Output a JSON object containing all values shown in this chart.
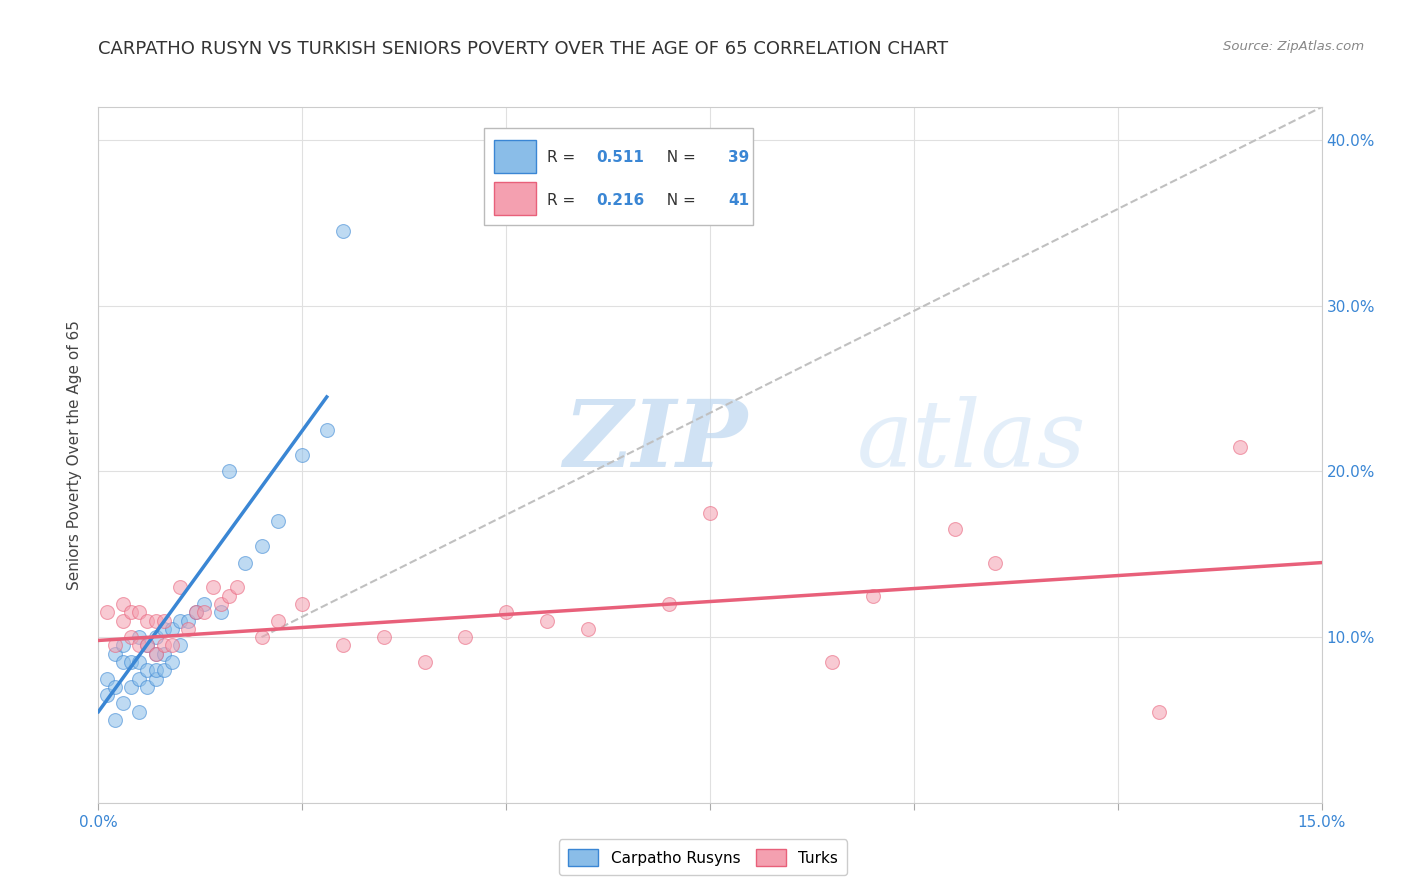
{
  "title": "CARPATHO RUSYN VS TURKISH SENIORS POVERTY OVER THE AGE OF 65 CORRELATION CHART",
  "source": "Source: ZipAtlas.com",
  "ylabel": "Seniors Poverty Over the Age of 65",
  "xlim": [
    0,
    0.15
  ],
  "ylim": [
    0,
    0.42
  ],
  "xticks": [
    0.0,
    0.025,
    0.05,
    0.075,
    0.1,
    0.125,
    0.15
  ],
  "xticklabels": [
    "0.0%",
    "",
    "",
    "",
    "",
    "",
    "15.0%"
  ],
  "yticks": [
    0.0,
    0.1,
    0.2,
    0.3,
    0.4
  ],
  "yticklabels": [
    "",
    "10.0%",
    "20.0%",
    "30.0%",
    "40.0%"
  ],
  "blue_color": "#8abde8",
  "pink_color": "#f4a0b0",
  "blue_line_color": "#3a86d4",
  "pink_line_color": "#e8607a",
  "tick_color": "#3a86d4",
  "blue_scatter_x": [
    0.001,
    0.001,
    0.002,
    0.002,
    0.002,
    0.003,
    0.003,
    0.003,
    0.004,
    0.004,
    0.005,
    0.005,
    0.005,
    0.005,
    0.006,
    0.006,
    0.006,
    0.007,
    0.007,
    0.007,
    0.007,
    0.008,
    0.008,
    0.008,
    0.009,
    0.009,
    0.01,
    0.01,
    0.011,
    0.012,
    0.013,
    0.015,
    0.016,
    0.018,
    0.02,
    0.022,
    0.025,
    0.028,
    0.03
  ],
  "blue_scatter_y": [
    0.065,
    0.075,
    0.05,
    0.07,
    0.09,
    0.06,
    0.085,
    0.095,
    0.07,
    0.085,
    0.055,
    0.075,
    0.085,
    0.1,
    0.07,
    0.08,
    0.095,
    0.075,
    0.08,
    0.09,
    0.1,
    0.08,
    0.09,
    0.105,
    0.085,
    0.105,
    0.095,
    0.11,
    0.11,
    0.115,
    0.12,
    0.115,
    0.2,
    0.145,
    0.155,
    0.17,
    0.21,
    0.225,
    0.345
  ],
  "pink_scatter_x": [
    0.001,
    0.002,
    0.003,
    0.003,
    0.004,
    0.004,
    0.005,
    0.005,
    0.006,
    0.006,
    0.007,
    0.007,
    0.008,
    0.008,
    0.009,
    0.01,
    0.011,
    0.012,
    0.013,
    0.014,
    0.015,
    0.016,
    0.017,
    0.02,
    0.022,
    0.025,
    0.03,
    0.035,
    0.04,
    0.045,
    0.05,
    0.055,
    0.06,
    0.07,
    0.075,
    0.09,
    0.095,
    0.105,
    0.11,
    0.13,
    0.14
  ],
  "pink_scatter_y": [
    0.115,
    0.095,
    0.11,
    0.12,
    0.1,
    0.115,
    0.095,
    0.115,
    0.095,
    0.11,
    0.09,
    0.11,
    0.095,
    0.11,
    0.095,
    0.13,
    0.105,
    0.115,
    0.115,
    0.13,
    0.12,
    0.125,
    0.13,
    0.1,
    0.11,
    0.12,
    0.095,
    0.1,
    0.085,
    0.1,
    0.115,
    0.11,
    0.105,
    0.12,
    0.175,
    0.085,
    0.125,
    0.165,
    0.145,
    0.055,
    0.215
  ],
  "blue_trend_x": [
    0.0,
    0.028
  ],
  "blue_trend_y": [
    0.055,
    0.245
  ],
  "pink_trend_x": [
    0.0,
    0.15
  ],
  "pink_trend_y": [
    0.098,
    0.145
  ],
  "ref_line_x": [
    0.02,
    0.15
  ],
  "ref_line_y": [
    0.1,
    0.42
  ],
  "background_color": "#ffffff",
  "grid_color": "#e0e0e0",
  "title_fontsize": 13,
  "axis_fontsize": 11,
  "tick_fontsize": 11,
  "scatter_size": 100,
  "scatter_alpha": 0.55
}
